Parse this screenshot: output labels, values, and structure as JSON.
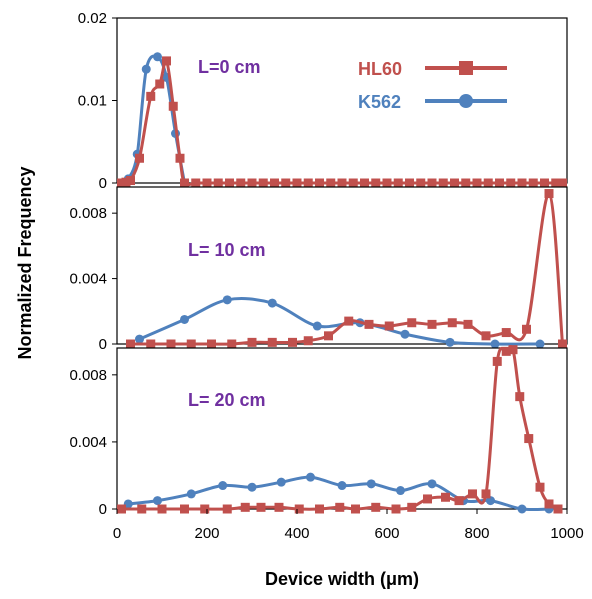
{
  "chart_data": {
    "type": "line",
    "xlabel": "Device width (μm)",
    "ylabel": "Normalized Frequency",
    "xlim": [
      0,
      1000
    ],
    "x_ticks": [
      "0",
      "200",
      "400",
      "600",
      "800",
      "1000"
    ],
    "legend": {
      "placement": "top-right of top panel",
      "entries": [
        {
          "name": "HL60",
          "color": "#c0504d",
          "marker": "square"
        },
        {
          "name": "K562",
          "color": "#4f81bd",
          "marker": "circle"
        }
      ]
    },
    "panels": [
      {
        "label": "L=0 cm",
        "ylim": [
          0,
          0.02
        ],
        "y_ticks": [
          "0",
          "0.01",
          "0.02"
        ],
        "y_tick_values": [
          0,
          0.01,
          0.02
        ],
        "series": [
          {
            "name": "HL60",
            "x": [
              10,
              20,
              30,
              50,
              75,
              95,
              110,
              125,
              140,
              150,
              175,
              200,
              225,
              250,
              275,
              300,
              325,
              350,
              375,
              400,
              425,
              450,
              475,
              500,
              525,
              550,
              575,
              600,
              625,
              650,
              675,
              700,
              725,
              750,
              775,
              800,
              825,
              850,
              875,
              900,
              925,
              950,
              975,
              990
            ],
            "y": [
              0,
              0.0001,
              0.0003,
              0.003,
              0.0105,
              0.012,
              0.0148,
              0.0093,
              0.003,
              0,
              0,
              0,
              0,
              0,
              0,
              0,
              0,
              0,
              0,
              0,
              0,
              0,
              0,
              0,
              0,
              0,
              0,
              0,
              0,
              0,
              0,
              0,
              0,
              0,
              0,
              0,
              0,
              0,
              0,
              0,
              0,
              0,
              0,
              0
            ]
          },
          {
            "name": "K562",
            "x": [
              10,
              25,
              45,
              65,
              90,
              110,
              130,
              150
            ],
            "y": [
              0,
              0.0005,
              0.0035,
              0.0138,
              0.0153,
              0.0128,
              0.006,
              0
            ]
          }
        ]
      },
      {
        "label": "L= 10 cm",
        "ylim": [
          0,
          0.0096
        ],
        "y_ticks": [
          "0",
          "0.004",
          "0.008"
        ],
        "y_tick_values": [
          0,
          0.004,
          0.008
        ],
        "series": [
          {
            "name": "HL60",
            "x": [
              30,
              75,
              120,
              165,
              210,
              255,
              300,
              345,
              390,
              425,
              470,
              515,
              560,
              605,
              655,
              700,
              745,
              780,
              820,
              865,
              910,
              960,
              990
            ],
            "y": [
              0,
              0,
              0,
              0,
              0,
              0,
              0.0001,
              0.0001,
              0.0001,
              0.0002,
              0.0005,
              0.0014,
              0.0012,
              0.0011,
              0.0013,
              0.0012,
              0.0013,
              0.0012,
              0.0005,
              0.0007,
              0.0009,
              0.0092,
              0
            ],
            "marker_count": 23
          },
          {
            "name": "K562",
            "x": [
              50,
              150,
              245,
              345,
              445,
              540,
              640,
              740,
              840,
              940
            ],
            "y": [
              0.0003,
              0.0015,
              0.0027,
              0.0025,
              0.0011,
              0.0013,
              0.0006,
              0.0001,
              0,
              0
            ]
          }
        ]
      },
      {
        "label": "L= 20 cm",
        "ylim": [
          0,
          0.0096
        ],
        "y_ticks": [
          "0",
          "0.004",
          "0.008"
        ],
        "y_tick_values": [
          0,
          0.004,
          0.008
        ],
        "series": [
          {
            "name": "HL60",
            "x": [
              10,
              55,
              100,
              150,
              195,
              245,
              285,
              320,
              360,
              405,
              450,
              495,
              530,
              575,
              620,
              655,
              690,
              730,
              760,
              790,
              820,
              845,
              865,
              880,
              895,
              915,
              940,
              960,
              980
            ],
            "y": [
              0,
              0,
              0,
              0,
              0,
              0,
              0.0001,
              0.0001,
              0.0001,
              0,
              0,
              0.0001,
              0,
              0.0001,
              0,
              0.0001,
              0.0006,
              0.0007,
              0.0005,
              0.0009,
              0.0009,
              0.0088,
              0.0094,
              0.0095,
              0.0067,
              0.0042,
              0.0013,
              0.0003,
              0
            ],
            "marker_count": 29
          },
          {
            "name": "K562",
            "x": [
              25,
              90,
              165,
              235,
              300,
              365,
              430,
              500,
              565,
              630,
              700,
              770,
              830,
              900,
              960
            ],
            "y": [
              0.0003,
              0.0005,
              0.0009,
              0.0014,
              0.0013,
              0.0016,
              0.0019,
              0.0014,
              0.0015,
              0.0011,
              0.0015,
              0.0005,
              0.0005,
              0,
              0
            ]
          }
        ]
      }
    ]
  }
}
